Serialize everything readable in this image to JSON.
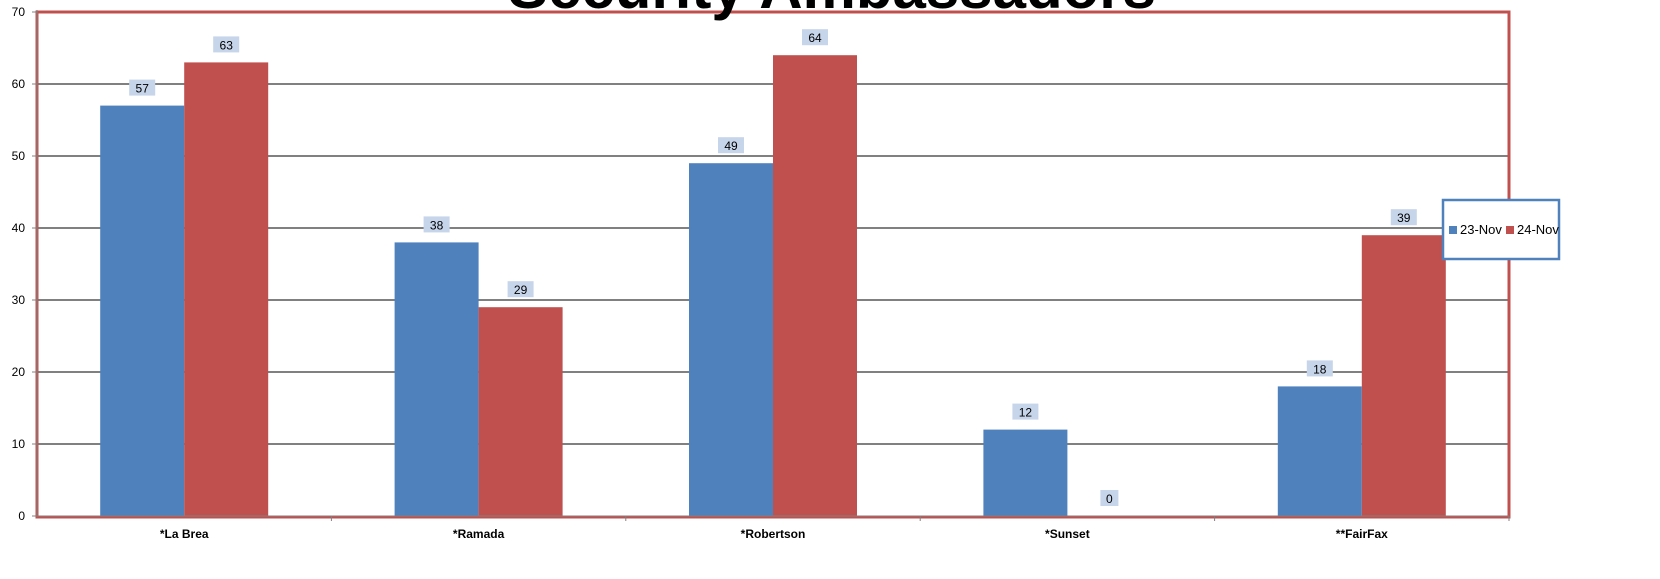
{
  "chart_data": {
    "type": "bar",
    "title": "Security Ambassadors",
    "categories": [
      "*La Brea",
      "*Ramada",
      "*Robertson",
      "*Sunset",
      "**FairFax"
    ],
    "series": [
      {
        "name": "23-Nov",
        "values": [
          57,
          38,
          49,
          12,
          18
        ]
      },
      {
        "name": "24-Nov",
        "values": [
          63,
          29,
          64,
          0,
          39
        ]
      }
    ],
    "ylim": [
      0,
      70
    ],
    "yticks": [
      0,
      10,
      20,
      30,
      40,
      50,
      60,
      70
    ],
    "grid": true,
    "legend_position": "right",
    "colors": {
      "series": [
        "#4f81bd",
        "#c0504d"
      ],
      "plot_border": "#c0504d",
      "legend_border": "#4f81bd",
      "label_background": "#c6d5ea",
      "gridline": "#000000"
    }
  }
}
